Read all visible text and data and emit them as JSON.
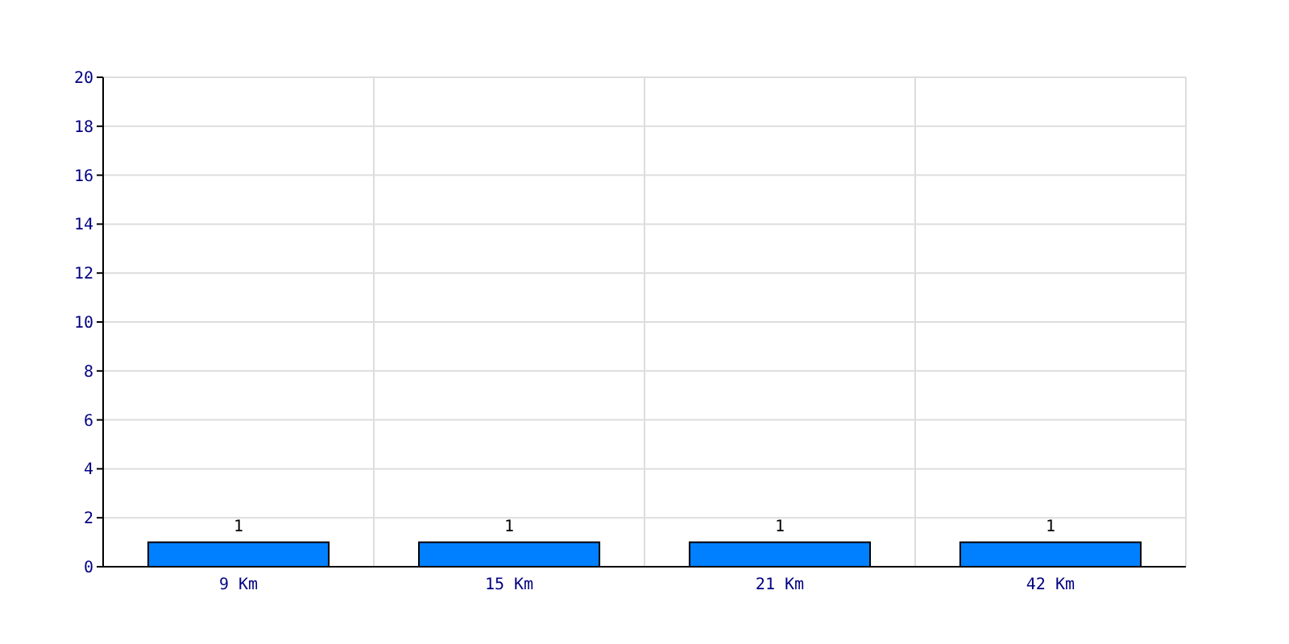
{
  "chart_data": {
    "type": "bar",
    "categories": [
      "9 Km",
      "15 Km",
      "21 Km",
      "42 Km"
    ],
    "values": [
      1,
      1,
      1,
      1
    ],
    "color": "#0080ff",
    "ylim": [
      0,
      20
    ],
    "yticks": [
      0,
      2,
      4,
      6,
      8,
      10,
      12,
      14,
      16,
      18,
      20
    ],
    "grid": true,
    "data_labels": true
  }
}
